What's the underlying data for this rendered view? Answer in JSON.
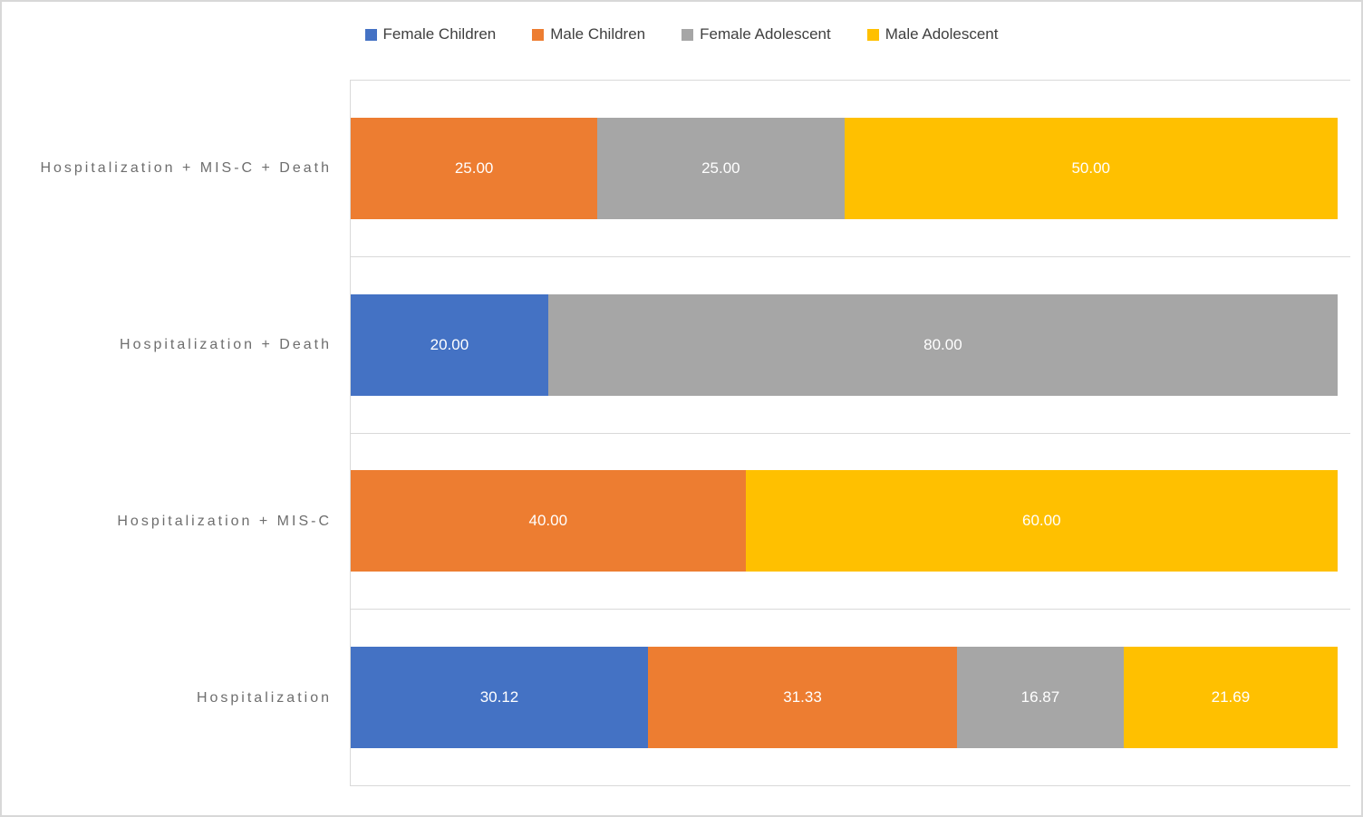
{
  "figure": {
    "background": "#ffffff",
    "border_color": "#d8d8d8",
    "gridline_color": "#d9d9d9"
  },
  "legend": {
    "position": "top-center",
    "items": [
      {
        "label": "Female Children",
        "color": "#4472C4"
      },
      {
        "label": "Male Children",
        "color": "#ED7D31"
      },
      {
        "label": "Female Adolescent",
        "color": "#A6A6A6"
      },
      {
        "label": "Male Adolescent",
        "color": "#FFC000"
      }
    ]
  },
  "chart_data": {
    "type": "bar",
    "orientation": "horizontal",
    "stacked": true,
    "percent_stacked": true,
    "title": "",
    "xlabel": "",
    "ylabel": "",
    "xlim": [
      0,
      100
    ],
    "grid": "category-boundary-lines",
    "legend_position": "top",
    "data_labels": "inside-center",
    "value_format_decimals": 2,
    "categories": [
      "Hospitalization + MIS-C + Death",
      "Hospitalization + Death",
      "Hospitalization + MIS-C",
      "Hospitalization"
    ],
    "series": [
      {
        "name": "Female Children",
        "color": "#4472C4",
        "values": [
          0,
          20.0,
          0,
          30.12
        ]
      },
      {
        "name": "Male Children",
        "color": "#ED7D31",
        "values": [
          25.0,
          0,
          40.0,
          31.33
        ]
      },
      {
        "name": "Female Adolescent",
        "color": "#A6A6A6",
        "values": [
          25.0,
          80.0,
          0,
          16.87
        ]
      },
      {
        "name": "Male Adolescent",
        "color": "#FFC000",
        "values": [
          50.0,
          0,
          60.0,
          21.69
        ]
      }
    ]
  }
}
